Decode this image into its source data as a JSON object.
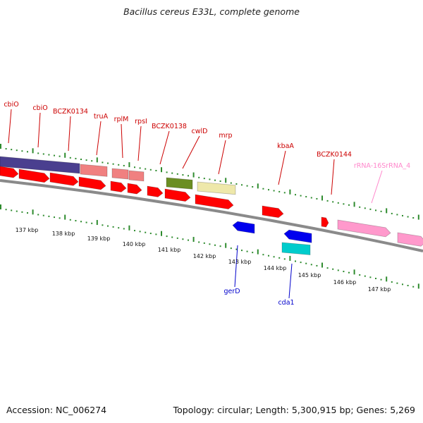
{
  "title": "Bacillus cereus E33L, complete genome",
  "footer": {
    "accession": "Accession: NC_006274",
    "summary": "Topology: circular; Length: 5,300,915 bp; Genes: 5,269"
  },
  "colors": {
    "backbone": "#8a8a8a",
    "tick": "#2e8b2e",
    "forward_cds": "#ff0000",
    "reverse_cds": "#0000ee",
    "rrna": "#ff99cc",
    "trna": "#f08080",
    "gene_purple": "#4a3f8f",
    "gene_olive": "#6b8e23",
    "gene_khaki": "#eee8aa",
    "gene_cyan": "#00cccc",
    "label_forward": "#cc0000",
    "label_reverse": "#0000cc",
    "label_rrna": "#ff88cc"
  },
  "scale_labels": [
    "137 kbp",
    "138 kbp",
    "139 kbp",
    "140 kbp",
    "141 kbp",
    "142 kbp",
    "143 kbp",
    "144 kbp",
    "145 kbp",
    "146 kbp",
    "147 kbp"
  ],
  "gene_labels_top": [
    "cbiO",
    "cbiO",
    "BCZK0134",
    "truA",
    "rplM",
    "rpsI",
    "BCZK0138",
    "cwlD",
    "mrp",
    "kbaA",
    "BCZK0144",
    "rRNA-16SrRNA_4"
  ],
  "gene_labels_bottom": [
    "gerD",
    "cda1"
  ]
}
